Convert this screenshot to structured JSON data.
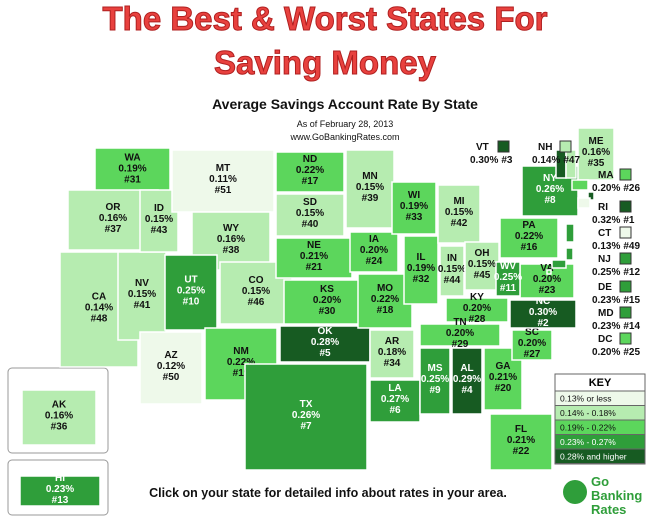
{
  "title_lines": [
    "The Best & Worst States For",
    "Saving Money"
  ],
  "subtitle": "Average Savings Account Rate By State",
  "as_of": "As of February 28, 2013",
  "website": "www.GoBankingRates.com",
  "states": [
    {
      "abbr": "WA",
      "rate": "0.19%",
      "rank": "#31",
      "color": "#5cd65c"
    },
    {
      "abbr": "OR",
      "rate": "0.16%",
      "rank": "#37",
      "color": "#b6ecb0"
    },
    {
      "abbr": "CA",
      "rate": "0.14%",
      "rank": "#48",
      "color": "#b6ecb0"
    },
    {
      "abbr": "NV",
      "rate": "0.15%",
      "rank": "#41",
      "color": "#b6ecb0"
    },
    {
      "abbr": "ID",
      "rate": "0.15%",
      "rank": "#43",
      "color": "#b6ecb0"
    },
    {
      "abbr": "MT",
      "rate": "0.11%",
      "rank": "#51",
      "color": "#eef9ea"
    },
    {
      "abbr": "WY",
      "rate": "0.16%",
      "rank": "#38",
      "color": "#b6ecb0"
    },
    {
      "abbr": "UT",
      "rate": "0.25%",
      "rank": "#10",
      "color": "#2f9e3a"
    },
    {
      "abbr": "AZ",
      "rate": "0.12%",
      "rank": "#50",
      "color": "#eef9ea"
    },
    {
      "abbr": "CO",
      "rate": "0.15%",
      "rank": "#46",
      "color": "#b6ecb0"
    },
    {
      "abbr": "NM",
      "rate": "0.22%",
      "rank": "#19",
      "color": "#5cd65c"
    },
    {
      "abbr": "ND",
      "rate": "0.22%",
      "rank": "#17",
      "color": "#5cd65c"
    },
    {
      "abbr": "SD",
      "rate": "0.15%",
      "rank": "#40",
      "color": "#b6ecb0"
    },
    {
      "abbr": "NE",
      "rate": "0.21%",
      "rank": "#21",
      "color": "#5cd65c"
    },
    {
      "abbr": "KS",
      "rate": "0.20%",
      "rank": "#30",
      "color": "#5cd65c"
    },
    {
      "abbr": "OK",
      "rate": "0.28%",
      "rank": "#5",
      "color": "#175b22"
    },
    {
      "abbr": "TX",
      "rate": "0.26%",
      "rank": "#7",
      "color": "#2f9e3a"
    },
    {
      "abbr": "MN",
      "rate": "0.15%",
      "rank": "#39",
      "color": "#b6ecb0"
    },
    {
      "abbr": "IA",
      "rate": "0.20%",
      "rank": "#24",
      "color": "#5cd65c"
    },
    {
      "abbr": "MO",
      "rate": "0.22%",
      "rank": "#18",
      "color": "#5cd65c"
    },
    {
      "abbr": "AR",
      "rate": "0.18%",
      "rank": "#34",
      "color": "#b6ecb0"
    },
    {
      "abbr": "LA",
      "rate": "0.27%",
      "rank": "#6",
      "color": "#2f9e3a"
    },
    {
      "abbr": "WI",
      "rate": "0.19%",
      "rank": "#33",
      "color": "#5cd65c"
    },
    {
      "abbr": "IL",
      "rate": "0.19%",
      "rank": "#32",
      "color": "#5cd65c"
    },
    {
      "abbr": "MI",
      "rate": "0.15%",
      "rank": "#42",
      "color": "#b6ecb0"
    },
    {
      "abbr": "IN",
      "rate": "0.15%",
      "rank": "#44",
      "color": "#b6ecb0"
    },
    {
      "abbr": "OH",
      "rate": "0.15%",
      "rank": "#45",
      "color": "#b6ecb0"
    },
    {
      "abbr": "KY",
      "rate": "0.20%",
      "rank": "#28",
      "color": "#5cd65c"
    },
    {
      "abbr": "TN",
      "rate": "0.20%",
      "rank": "#29",
      "color": "#5cd65c"
    },
    {
      "abbr": "MS",
      "rate": "0.25%",
      "rank": "#9",
      "color": "#2f9e3a"
    },
    {
      "abbr": "AL",
      "rate": "0.29%",
      "rank": "#4",
      "color": "#175b22"
    },
    {
      "abbr": "GA",
      "rate": "0.21%",
      "rank": "#20",
      "color": "#5cd65c"
    },
    {
      "abbr": "FL",
      "rate": "0.21%",
      "rank": "#22",
      "color": "#5cd65c"
    },
    {
      "abbr": "SC",
      "rate": "0.20%",
      "rank": "#27",
      "color": "#5cd65c"
    },
    {
      "abbr": "NC",
      "rate": "0.30%",
      "rank": "#2",
      "color": "#175b22"
    },
    {
      "abbr": "VA",
      "rate": "0.20%",
      "rank": "#23",
      "color": "#5cd65c"
    },
    {
      "abbr": "WV",
      "rate": "0.25%",
      "rank": "#11",
      "color": "#2f9e3a"
    },
    {
      "abbr": "PA",
      "rate": "0.22%",
      "rank": "#16",
      "color": "#5cd65c"
    },
    {
      "abbr": "NY",
      "rate": "0.26%",
      "rank": "#8",
      "color": "#2f9e3a"
    },
    {
      "abbr": "ME",
      "rate": "0.16%",
      "rank": "#35",
      "color": "#b6ecb0"
    },
    {
      "abbr": "VT",
      "rate": "0.30%",
      "rank": "#3",
      "color": "#175b22"
    },
    {
      "abbr": "NH",
      "rate": "0.14%",
      "rank": "#47",
      "color": "#b6ecb0"
    },
    {
      "abbr": "MA",
      "rate": "0.20%",
      "rank": "#26",
      "color": "#5cd65c"
    },
    {
      "abbr": "RI",
      "rate": "0.32%",
      "rank": "#1",
      "color": "#175b22"
    },
    {
      "abbr": "CT",
      "rate": "0.13%",
      "rank": "#49",
      "color": "#eef9ea"
    },
    {
      "abbr": "NJ",
      "rate": "0.25%",
      "rank": "#12",
      "color": "#2f9e3a"
    },
    {
      "abbr": "DE",
      "rate": "0.23%",
      "rank": "#15",
      "color": "#2f9e3a"
    },
    {
      "abbr": "MD",
      "rate": "0.23%",
      "rank": "#14",
      "color": "#2f9e3a"
    },
    {
      "abbr": "DC",
      "rate": "0.20%",
      "rank": "#25",
      "color": "#5cd65c"
    },
    {
      "abbr": "AK",
      "rate": "0.16%",
      "rank": "#36",
      "color": "#b6ecb0"
    },
    {
      "abbr": "HI",
      "rate": "0.23%",
      "rank": "#13",
      "color": "#2f9e3a"
    }
  ],
  "key": {
    "title": "KEY",
    "items": [
      {
        "label": "0.13% or less",
        "color": "#eef9ea"
      },
      {
        "label": "0.14% - 0.18%",
        "color": "#b6ecb0"
      },
      {
        "label": "0.19% - 0.22%",
        "color": "#5cd65c"
      },
      {
        "label": "0.23% - 0.27%",
        "color": "#2f9e3a"
      },
      {
        "label": "0.28% and higher",
        "color": "#175b22"
      }
    ]
  },
  "footer": "Click on your state for detailed info about rates in your area.",
  "logo": [
    "Go",
    "Banking",
    "Rates"
  ]
}
